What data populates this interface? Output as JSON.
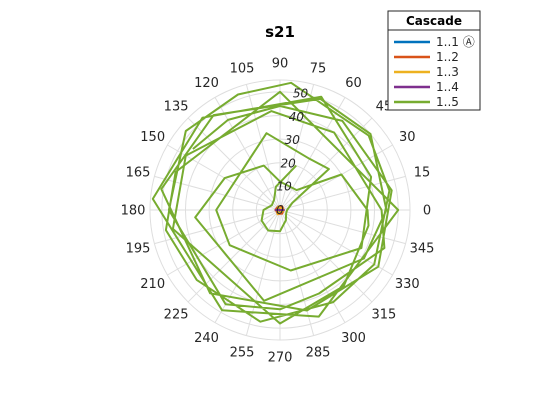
{
  "chart_data": {
    "type": "polar_line",
    "title": "s21",
    "angle_ticks": [
      "0",
      "15",
      "30",
      "45",
      "60",
      "75",
      "90",
      "105",
      "120",
      "135",
      "150",
      "165",
      "180",
      "195",
      "210",
      "225",
      "240",
      "255",
      "270",
      "285",
      "300",
      "315",
      "330",
      "345"
    ],
    "radial_ticks": [
      "0",
      "10",
      "20",
      "30",
      "40",
      "50"
    ],
    "rlim": [
      0,
      55
    ],
    "grid": true,
    "legend": {
      "title": "Cascade",
      "placement": "top-right",
      "entries": [
        {
          "label": "1..1 Ⓐ",
          "color": "#0072bd"
        },
        {
          "label": "1..2",
          "color": "#d95319"
        },
        {
          "label": "1..3",
          "color": "#edb120"
        },
        {
          "label": "1..4",
          "color": "#7e2f8e"
        },
        {
          "label": "1..5",
          "color": "#77ac30"
        }
      ]
    },
    "series": [
      {
        "name": "1..1 Ⓐ",
        "color": "#0072bd",
        "points": [
          [
            0,
            0.5
          ],
          [
            90,
            0.5
          ],
          [
            180,
            0.5
          ],
          [
            270,
            0.5
          ],
          [
            360,
            0.5
          ]
        ]
      },
      {
        "name": "1..2",
        "color": "#d95319",
        "points": [
          [
            0,
            1.6
          ],
          [
            60,
            1.8
          ],
          [
            120,
            1.3
          ],
          [
            180,
            1.6
          ],
          [
            240,
            2.0
          ],
          [
            300,
            1.7
          ],
          [
            360,
            1.6
          ],
          [
            420,
            1.2
          ],
          [
            480,
            1.7
          ],
          [
            540,
            2.0
          ],
          [
            600,
            1.3
          ],
          [
            660,
            1.8
          ],
          [
            720,
            1.5
          ]
        ]
      },
      {
        "name": "1..3",
        "color": "#edb120",
        "points": [
          [
            0,
            1.8
          ],
          [
            120,
            1.5
          ],
          [
            240,
            2.0
          ],
          [
            360,
            1.7
          ],
          [
            480,
            1.6
          ],
          [
            600,
            2.1
          ],
          [
            720,
            1.8
          ]
        ]
      },
      {
        "name": "1..4",
        "color": "#7e2f8e",
        "points": [
          [
            0,
            1.5
          ],
          [
            180,
            1.8
          ],
          [
            360,
            1.6
          ],
          [
            540,
            1.7
          ],
          [
            720,
            1.5
          ]
        ]
      },
      {
        "name": "1..5",
        "color": "#77ac30",
        "points": [
          [
            70,
            20
          ],
          [
            100,
            10
          ],
          [
            120,
            5
          ],
          [
            150,
            4
          ],
          [
            180,
            7
          ],
          [
            210,
            9
          ],
          [
            240,
            10
          ],
          [
            270,
            9
          ],
          [
            300,
            5
          ],
          [
            330,
            3
          ],
          [
            360,
            3
          ],
          [
            390,
            6
          ],
          [
            400,
            27
          ],
          [
            420,
            25
          ],
          [
            460,
            33
          ],
          [
            540,
            27
          ],
          [
            575,
            26
          ],
          [
            640,
            26
          ],
          [
            695,
            38
          ],
          [
            740,
            41
          ],
          [
            790,
            51
          ],
          [
            850,
            51
          ],
          [
            895,
            54
          ],
          [
            960,
            49
          ],
          [
            1010,
            48
          ],
          [
            1080,
            50
          ],
          [
            1170,
            50
          ],
          [
            1240,
            47
          ],
          [
            1270,
            49
          ],
          [
            1300,
            46
          ],
          [
            1340,
            48
          ],
          [
            1380,
            45
          ],
          [
            1410,
            46
          ],
          [
            1450,
            47
          ],
          [
            1480,
            49
          ],
          [
            1525,
            54
          ],
          [
            1550,
            52
          ],
          [
            1580,
            52
          ],
          [
            1620,
            47
          ],
          [
            1680,
            46
          ],
          [
            1710,
            42
          ],
          [
            1735,
            39
          ],
          [
            1780,
            47
          ],
          [
            1800,
            43
          ],
          [
            1855,
            40
          ],
          [
            1895,
            42
          ],
          [
            1950,
            46
          ],
          [
            1990,
            46
          ],
          [
            2070,
            48
          ],
          [
            2110,
            42
          ],
          [
            2150,
            38
          ],
          [
            2160,
            37
          ],
          [
            2190,
            30
          ],
          [
            2210,
            11
          ],
          [
            2250,
            12
          ],
          [
            2270,
            20
          ],
          [
            2310,
            27
          ],
          [
            2345,
            36
          ],
          [
            2420,
            39
          ],
          [
            2490,
            41
          ],
          [
            2520,
            45
          ],
          [
            2560,
            50
          ],
          [
            2590,
            50
          ],
          [
            2645,
            49
          ],
          [
            2690,
            51
          ],
          [
            2750,
            46
          ],
          [
            2805,
            44
          ],
          [
            2850,
            48
          ],
          [
            2890,
            48
          ],
          [
            2935,
            46
          ],
          [
            2970,
            44
          ],
          [
            3000,
            44
          ],
          [
            3025,
            45
          ]
        ]
      }
    ]
  }
}
